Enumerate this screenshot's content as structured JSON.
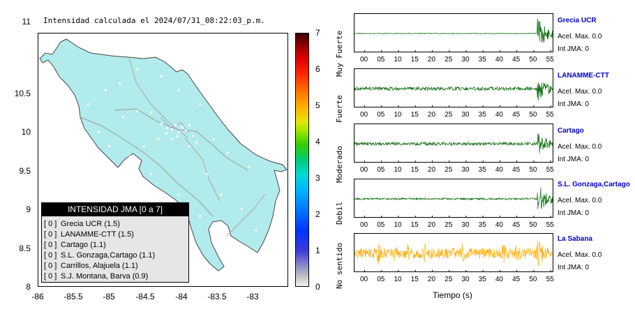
{
  "map": {
    "title": "Intensidad calculada el 2024/07/31_08:22:03_p.m.",
    "y_ticks": [
      "11",
      "10.5",
      "10",
      "9.5",
      "9",
      "8.5",
      "8"
    ],
    "x_ticks": [
      "-86",
      "-85.5",
      "-85",
      "-84.5",
      "-84",
      "-83.5",
      "-83"
    ],
    "legend_title": "INTENSIDAD JMA [0 a 7]",
    "legend_items": [
      {
        "bracket": "[ 0 ]",
        "label": "Grecia UCR (1.5)"
      },
      {
        "bracket": "[ 0 ]",
        "label": "LANAMME-CTT (1.5)"
      },
      {
        "bracket": "[ 0 ]",
        "label": "Cartago (1.1)"
      },
      {
        "bracket": "[ 0 ]",
        "label": "S.L. Gonzaga,Cartago (1.1)"
      },
      {
        "bracket": "[ 0 ]",
        "label": "Carrillos, Alajuela (1.1)"
      },
      {
        "bracket": "[ 0 ]",
        "label": "S.J. Montana, Barva (0.9)"
      }
    ],
    "land_color": "#b2ebeb"
  },
  "colorbar": {
    "ticks": [
      "7",
      "6",
      "5",
      "4",
      "3",
      "2",
      "1",
      "0"
    ],
    "levels": [
      "Muy Fuerte",
      "Fuerte",
      "Moderado",
      "Debil",
      "No sentido"
    ]
  },
  "waveforms": {
    "time_ticks": [
      "00",
      "05",
      "10",
      "15",
      "20",
      "25",
      "30",
      "35",
      "40",
      "45",
      "50",
      "55"
    ],
    "xlabel": "Tiempo (s)",
    "stations": [
      {
        "name": "Grecia UCR",
        "acel": "Acel. Max. 0.0",
        "jma": "Int JMA: 0",
        "color": "#006600"
      },
      {
        "name": "LANAMME-CTT",
        "acel": "Acel. Max. 0.0",
        "jma": "Int JMA: 0",
        "color": "#006600"
      },
      {
        "name": "Cartago",
        "acel": "Acel. Max. 0.0",
        "jma": "Int JMA: 0",
        "color": "#006600"
      },
      {
        "name": "S.L. Gonzaga,Cartago",
        "acel": "Acel. Max. 0.0",
        "jma": "Int JMA: 0",
        "color": "#006600"
      },
      {
        "name": "La Sabana",
        "acel": "Acel. Max. 0.0",
        "jma": "Int JMA: 0",
        "color": "#ffaa00"
      }
    ]
  },
  "chart_data": [
    {
      "type": "scatter",
      "title": "Intensidad calculada el 2024/07/31_08:22:03_p.m.",
      "xlabel": "",
      "ylabel": "",
      "xlim": [
        -86,
        -82.6
      ],
      "ylim": [
        8,
        11.3
      ],
      "colorbar_range": [
        0,
        7
      ],
      "legend": "bottom-left"
    },
    {
      "type": "line",
      "xlabel": "Tiempo (s)",
      "xlim": [
        -3,
        56
      ],
      "series": [
        {
          "name": "Grecia UCR",
          "event_onset_s": 51,
          "pre_noise": 0.02,
          "event_amp": 0.95
        },
        {
          "name": "LANAMME-CTT",
          "event_onset_s": 51,
          "pre_noise": 0.1,
          "event_amp": 0.9
        },
        {
          "name": "Cartago",
          "event_onset_s": 51,
          "pre_noise": 0.09,
          "event_amp": 0.75
        },
        {
          "name": "S.L. Gonzaga,Cartago",
          "event_onset_s": 51,
          "pre_noise": 0.05,
          "event_amp": 0.9
        },
        {
          "name": "La Sabana",
          "event_onset_s": 50.5,
          "pre_noise": 0.3,
          "event_amp": 0.95
        }
      ]
    }
  ]
}
